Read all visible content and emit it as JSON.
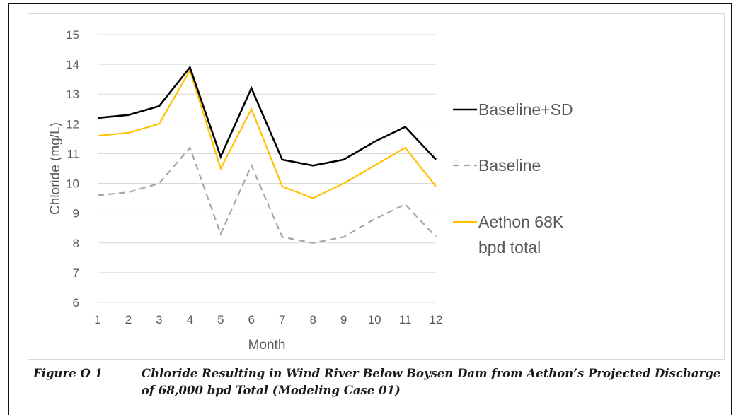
{
  "caption": {
    "figure_label": "Figure O 1",
    "figure_text": "Chloride Resulting in Wind River Below Boysen Dam from Aethon’s Projected Discharge of 68,000 bpd Total (Modeling Case 01)"
  },
  "chart_data": {
    "type": "line",
    "title": "",
    "xlabel": "Month",
    "ylabel": "Chloride (mg/L)",
    "x": [
      1,
      2,
      3,
      4,
      5,
      6,
      7,
      8,
      9,
      10,
      11,
      12
    ],
    "x_tick_labels": [
      "1",
      "2",
      "3",
      "4",
      "5",
      "6",
      "7",
      "8",
      "9",
      "10",
      "11",
      "12"
    ],
    "ylim": [
      6,
      15
    ],
    "y_tick_labels": [
      "6",
      "7",
      "8",
      "9",
      "10",
      "11",
      "12",
      "13",
      "14",
      "15"
    ],
    "grid": true,
    "legend_position": "right",
    "series": [
      {
        "name": "Baseline+SD",
        "color": "#000000",
        "dash": "solid",
        "values": [
          12.2,
          12.3,
          12.6,
          13.9,
          10.9,
          13.2,
          10.8,
          10.6,
          10.8,
          11.4,
          11.9,
          10.8
        ]
      },
      {
        "name": "Baseline",
        "color": "#a6a6a6",
        "dash": "dashed",
        "values": [
          9.6,
          9.7,
          10.0,
          11.2,
          8.3,
          10.6,
          8.2,
          8.0,
          8.2,
          8.8,
          9.3,
          8.2
        ]
      },
      {
        "name": "Aethon 68K bpd total",
        "color": "#ffc000",
        "dash": "solid",
        "values": [
          11.6,
          11.7,
          12.0,
          13.8,
          10.5,
          12.5,
          9.9,
          9.5,
          10.0,
          10.6,
          11.2,
          9.9
        ]
      }
    ],
    "legend_lines": [
      [
        "Baseline+SD"
      ],
      [
        "Baseline"
      ],
      [
        "Aethon 68K",
        "bpd total"
      ]
    ]
  }
}
